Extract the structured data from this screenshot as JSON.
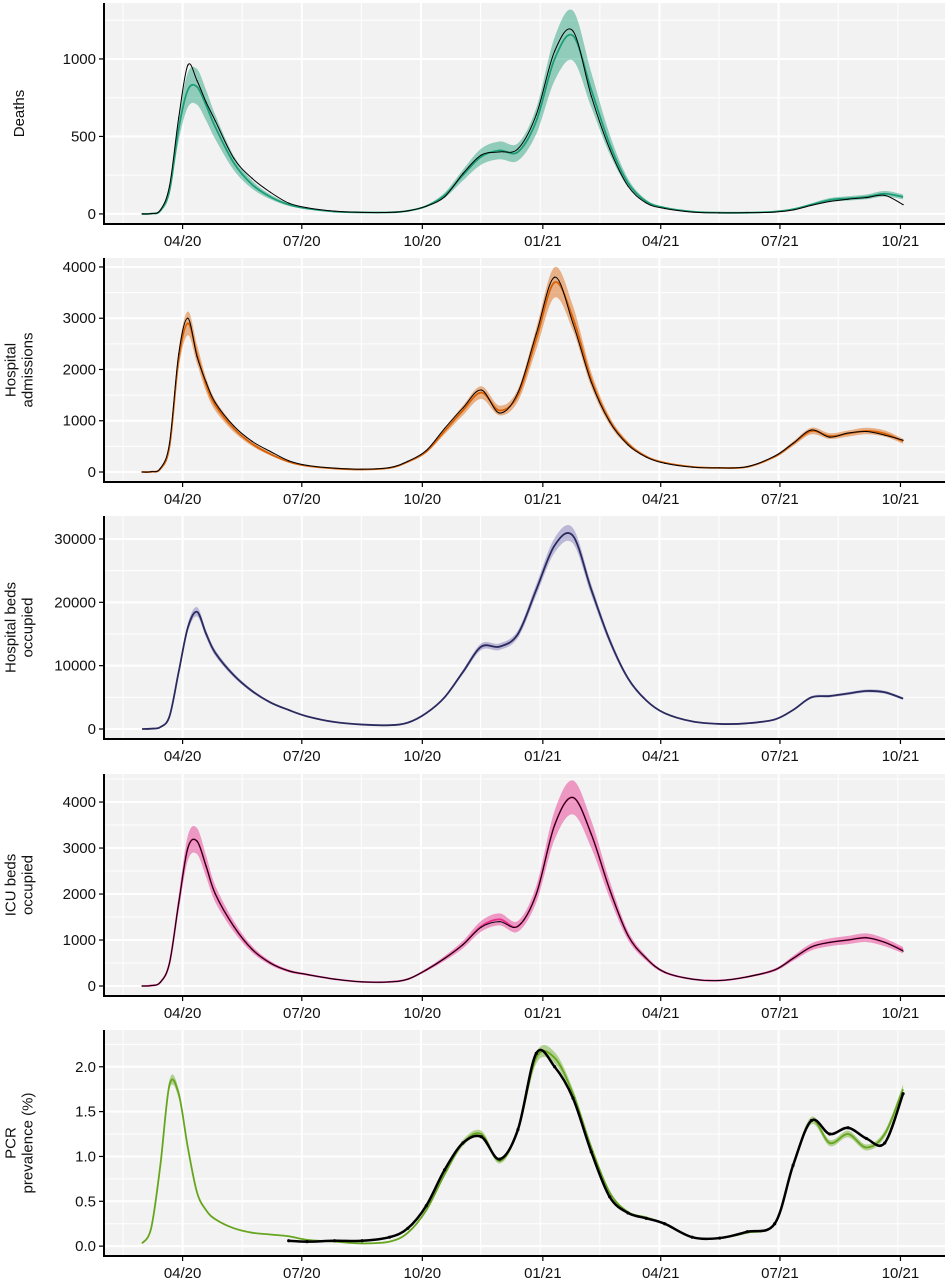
{
  "chart_data": {
    "type": "line",
    "x_axis": {
      "type": "date",
      "range": [
        "2020-02-01",
        "2021-11-04"
      ],
      "ticks": [
        "2020-04-01",
        "2020-07-01",
        "2020-10-01",
        "2021-01-01",
        "2021-04-01",
        "2021-07-01",
        "2021-10-01"
      ],
      "tick_labels": [
        "04/20",
        "07/20",
        "10/20",
        "01/21",
        "04/21",
        "07/21",
        "10/21"
      ]
    },
    "grid": true,
    "dates": [
      "2020-03-01",
      "2020-03-08",
      "2020-03-15",
      "2020-03-22",
      "2020-03-29",
      "2020-04-05",
      "2020-04-12",
      "2020-04-19",
      "2020-04-26",
      "2020-05-10",
      "2020-05-24",
      "2020-06-07",
      "2020-06-21",
      "2020-07-05",
      "2020-07-26",
      "2020-08-16",
      "2020-09-06",
      "2020-09-20",
      "2020-10-04",
      "2020-10-18",
      "2020-11-01",
      "2020-11-15",
      "2020-11-29",
      "2020-12-13",
      "2020-12-27",
      "2021-01-10",
      "2021-01-24",
      "2021-02-07",
      "2021-02-21",
      "2021-03-07",
      "2021-03-21",
      "2021-04-04",
      "2021-04-25",
      "2021-05-16",
      "2021-06-06",
      "2021-06-27",
      "2021-07-11",
      "2021-07-25",
      "2021-08-08",
      "2021-08-22",
      "2021-09-05",
      "2021-09-19",
      "2021-10-03"
    ],
    "panels": [
      {
        "ylabel": [
          "Deaths"
        ],
        "ylim": [
          -65,
          1361
        ],
        "yticks": [
          0,
          500,
          1000
        ],
        "color": "#1b9e77",
        "band_color": "#1b9e77",
        "observed_color": "#000000",
        "ci_relative_width": 0.14,
        "model": [
          0,
          2,
          20,
          150,
          550,
          800,
          820,
          700,
          560,
          330,
          190,
          110,
          60,
          35,
          15,
          10,
          10,
          20,
          50,
          120,
          250,
          370,
          410,
          400,
          600,
          1000,
          1150,
          800,
          450,
          200,
          80,
          40,
          15,
          8,
          8,
          15,
          30,
          60,
          90,
          100,
          110,
          130,
          110
        ],
        "observed": [
          0,
          2,
          25,
          180,
          620,
          960,
          860,
          720,
          600,
          360,
          230,
          140,
          70,
          40,
          18,
          10,
          10,
          20,
          50,
          110,
          260,
          380,
          400,
          420,
          640,
          1050,
          1180,
          760,
          420,
          180,
          70,
          35,
          12,
          7,
          8,
          12,
          25,
          55,
          80,
          95,
          105,
          120,
          60
        ]
      },
      {
        "ylabel": [
          "Hospital",
          "admissions"
        ],
        "ylim": [
          -195,
          4175
        ],
        "yticks": [
          0,
          1000,
          2000,
          3000,
          4000
        ],
        "color": "#d95f02",
        "band_color": "#d95f02",
        "observed_color": "#000000",
        "ci_relative_width": 0.08,
        "model": [
          0,
          5,
          60,
          500,
          2200,
          2900,
          2300,
          1700,
          1300,
          850,
          550,
          350,
          200,
          120,
          70,
          50,
          80,
          200,
          400,
          800,
          1200,
          1550,
          1200,
          1500,
          2600,
          3700,
          3000,
          1800,
          1000,
          550,
          300,
          180,
          100,
          80,
          100,
          300,
          550,
          800,
          700,
          750,
          800,
          750,
          600
        ],
        "observed": [
          0,
          5,
          70,
          560,
          2300,
          3000,
          2250,
          1750,
          1350,
          900,
          600,
          400,
          220,
          130,
          75,
          55,
          85,
          210,
          420,
          850,
          1250,
          1600,
          1150,
          1550,
          2700,
          3800,
          2900,
          1750,
          980,
          530,
          290,
          170,
          95,
          80,
          105,
          310,
          560,
          820,
          680,
          760,
          790,
          720,
          620
        ]
      },
      {
        "ylabel": [
          "Hospital beds",
          "occupied"
        ],
        "ylim": [
          -1580,
          33630
        ],
        "yticks": [
          0,
          10000,
          20000,
          30000
        ],
        "color": "#2b2a5e",
        "band_color": "#7570b3",
        "observed_color": "#2b2a5e",
        "ci_relative_width": 0.04,
        "model": [
          0,
          50,
          300,
          2000,
          9000,
          16000,
          18500,
          15000,
          12000,
          8500,
          6000,
          4200,
          3000,
          2000,
          1100,
          700,
          600,
          1000,
          2500,
          5000,
          9000,
          13000,
          13000,
          15000,
          22000,
          29000,
          30500,
          22000,
          14000,
          8000,
          4500,
          2500,
          1200,
          800,
          900,
          1500,
          3000,
          5000,
          5200,
          5600,
          6000,
          5800,
          4800
        ],
        "observed": null
      },
      {
        "ylabel": [
          "ICU beds",
          "occupied"
        ],
        "ylim": [
          -217,
          4610
        ],
        "yticks": [
          0,
          1000,
          2000,
          3000,
          4000
        ],
        "color": "#e7298a",
        "band_color": "#e7298a",
        "observed_color": "#000000",
        "ci_relative_width": 0.09,
        "model": [
          0,
          10,
          80,
          500,
          1800,
          3000,
          3150,
          2600,
          2000,
          1300,
          800,
          500,
          330,
          250,
          150,
          90,
          90,
          150,
          350,
          600,
          900,
          1300,
          1450,
          1300,
          2000,
          3500,
          4100,
          3300,
          2100,
          1100,
          600,
          300,
          150,
          120,
          200,
          350,
          600,
          850,
          950,
          1000,
          1050,
          950,
          780
        ],
        "observed": [
          0,
          10,
          80,
          500,
          1800,
          3000,
          3150,
          2600,
          2000,
          1300,
          800,
          500,
          330,
          250,
          150,
          90,
          90,
          150,
          350,
          600,
          900,
          1280,
          1400,
          1300,
          2000,
          3500,
          4100,
          3300,
          2100,
          1100,
          600,
          300,
          150,
          120,
          200,
          350,
          600,
          850,
          950,
          1000,
          1050,
          950,
          760
        ]
      },
      {
        "ylabel": [
          "PCR",
          "prevalence (%)"
        ],
        "ylim": [
          -0.11,
          2.41
        ],
        "yticks": [
          0.0,
          0.5,
          1.0,
          1.5,
          2.0
        ],
        "ytick_labels": [
          "0.0",
          "0.5",
          "1.0",
          "1.5",
          "2.0"
        ],
        "color": "#66a61e",
        "band_color": "#66a61e",
        "observed_color": "#000000",
        "ci_relative_width": 0.03,
        "model": [
          0.03,
          0.2,
          0.9,
          1.8,
          1.7,
          1.1,
          0.6,
          0.4,
          0.3,
          0.2,
          0.15,
          0.13,
          0.11,
          0.07,
          0.05,
          0.03,
          0.05,
          0.15,
          0.4,
          0.8,
          1.15,
          1.25,
          0.95,
          1.3,
          2.1,
          2.1,
          1.7,
          1.1,
          0.6,
          0.38,
          0.32,
          0.25,
          0.1,
          0.09,
          0.15,
          0.25,
          0.9,
          1.4,
          1.15,
          1.25,
          1.1,
          1.25,
          1.75
        ],
        "observed": [
          null,
          null,
          null,
          null,
          null,
          null,
          null,
          null,
          null,
          null,
          null,
          null,
          0.06,
          0.05,
          0.06,
          0.06,
          0.1,
          0.2,
          0.45,
          0.85,
          1.15,
          1.22,
          0.97,
          1.3,
          2.15,
          2.0,
          1.65,
          1.05,
          0.55,
          0.37,
          0.31,
          0.25,
          0.1,
          0.09,
          0.16,
          0.25,
          0.9,
          1.4,
          1.25,
          1.32,
          1.2,
          1.15,
          1.7
        ]
      }
    ]
  }
}
